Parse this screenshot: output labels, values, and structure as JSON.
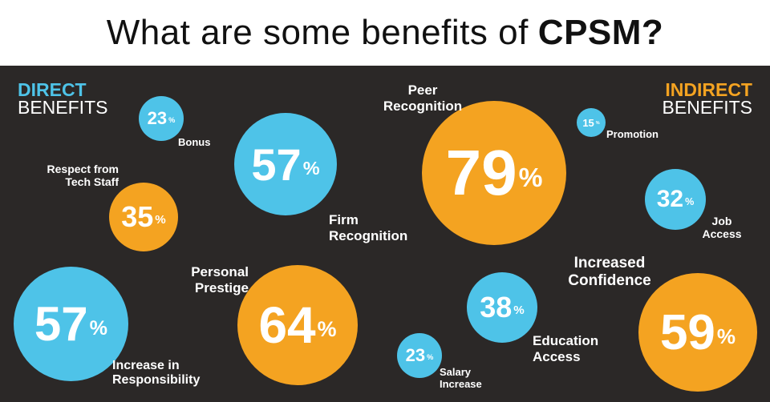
{
  "title": {
    "regular": "What are some benefits of",
    "bold": "CPSM?"
  },
  "direct_heading": {
    "top": "DIRECT",
    "bottom": "BENEFITS"
  },
  "indirect_heading": {
    "top": "INDIRECT",
    "bottom": "BENEFITS"
  },
  "colors": {
    "blue": "#4ec3e8",
    "orange": "#f4a321",
    "panel": "#2b2827"
  },
  "bubbles": [
    {
      "id": "bonus",
      "value": "23",
      "label": [
        "Bonus"
      ],
      "color": "blue",
      "group": "direct"
    },
    {
      "id": "tech-staff",
      "value": "35",
      "label": [
        "Respect from",
        "Tech Staff"
      ],
      "color": "orange",
      "group": "direct"
    },
    {
      "id": "firm-recognition",
      "value": "57",
      "label": [
        "Firm",
        "Recognition"
      ],
      "color": "blue",
      "group": "direct"
    },
    {
      "id": "responsibility",
      "value": "57",
      "label": [
        "Increase in",
        "Responsibility"
      ],
      "color": "blue",
      "group": "direct"
    },
    {
      "id": "prestige",
      "value": "64",
      "label": [
        "Personal",
        "Prestige"
      ],
      "color": "orange",
      "group": "direct"
    },
    {
      "id": "peer",
      "value": "79",
      "label": [
        "Peer",
        "Recognition"
      ],
      "color": "orange",
      "group": "indirect"
    },
    {
      "id": "promotion",
      "value": "15",
      "label": [
        "Promotion"
      ],
      "color": "blue",
      "group": "indirect"
    },
    {
      "id": "job-access",
      "value": "32",
      "label": [
        "Job",
        "Access"
      ],
      "color": "blue",
      "group": "indirect"
    },
    {
      "id": "education",
      "value": "38",
      "label": [
        "Education",
        "Access"
      ],
      "color": "blue",
      "group": "indirect"
    },
    {
      "id": "salary",
      "value": "23",
      "label": [
        "Salary",
        "Increase"
      ],
      "color": "blue",
      "group": "indirect"
    },
    {
      "id": "confidence",
      "value": "59",
      "label": [
        "Increased",
        "Confidence"
      ],
      "color": "orange",
      "group": "indirect"
    }
  ],
  "percent_sign": "%"
}
